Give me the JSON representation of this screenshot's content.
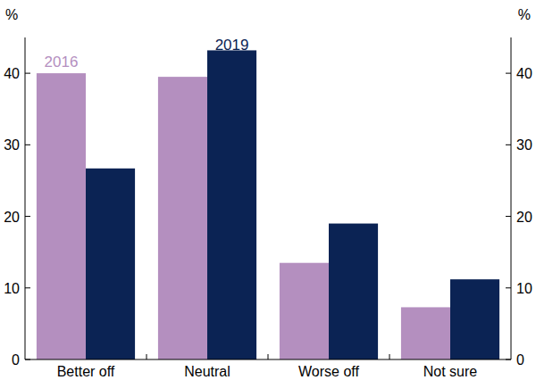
{
  "chart_data": {
    "type": "bar",
    "y_label": "%",
    "categories": [
      "Better off",
      "Neutral",
      "Worse off",
      "Not sure"
    ],
    "series": [
      {
        "name": "2016",
        "color": "#b48fbf",
        "values": [
          40,
          39.5,
          13.5,
          7.3
        ]
      },
      {
        "name": "2019",
        "color": "#0b2354",
        "values": [
          26.7,
          43.2,
          19,
          11.2
        ]
      }
    ],
    "ylim": [
      0,
      45
    ],
    "yticks": [
      0,
      10,
      20,
      30,
      40
    ],
    "grid": false
  }
}
